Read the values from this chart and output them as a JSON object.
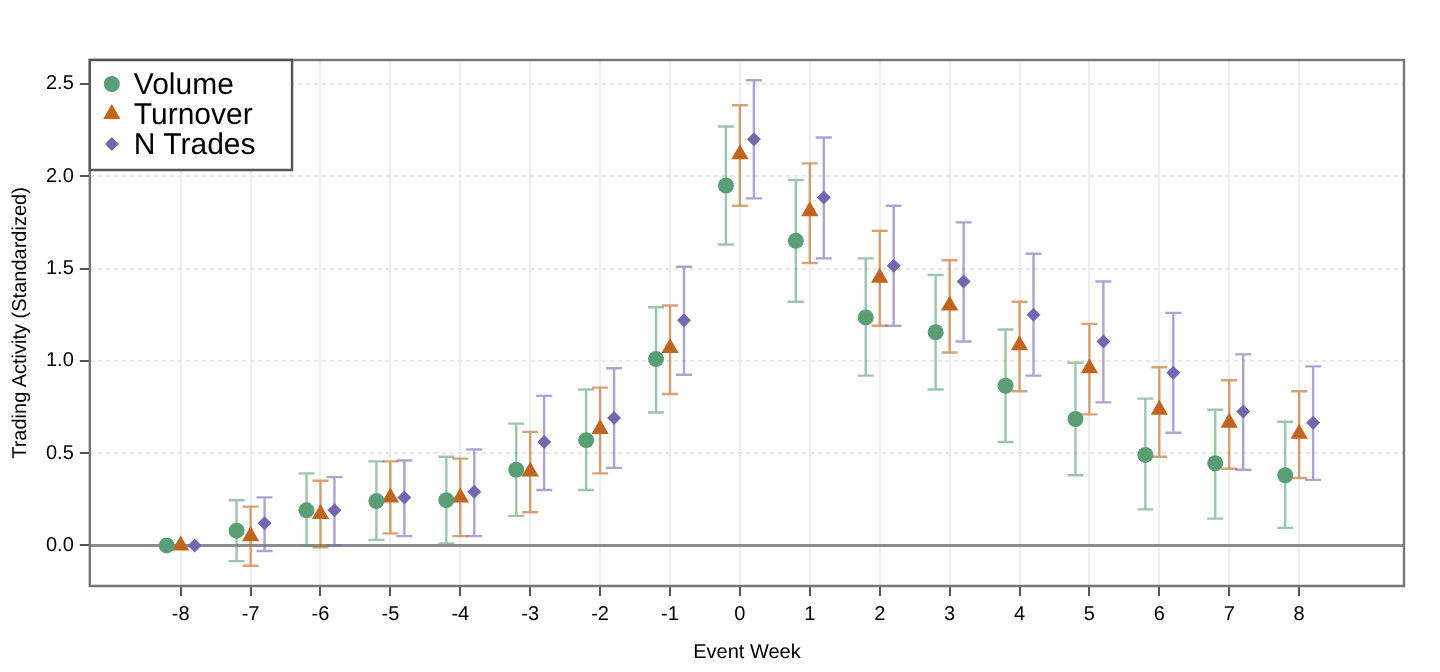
{
  "chart_data": {
    "type": "scatter",
    "xlabel": "Event Week",
    "ylabel": "Trading Activity (Standardized)",
    "xlim": [
      -9.3,
      9.5
    ],
    "xticks": [
      -8,
      -7,
      -6,
      -5,
      -4,
      -3,
      -2,
      -1,
      0,
      1,
      2,
      3,
      4,
      5,
      6,
      7,
      8
    ],
    "ylim": [
      -0.22,
      2.63
    ],
    "yticks": [
      {
        "value": 0,
        "label": "0.0"
      },
      {
        "value": 0.5,
        "label": "0.5"
      },
      {
        "value": 1,
        "label": "1.0"
      },
      {
        "value": 1.5,
        "label": "1.5"
      },
      {
        "value": 2,
        "label": "2.0"
      },
      {
        "value": 2.5,
        "label": "2.5"
      }
    ],
    "grid": true,
    "legend": "top left",
    "ref_lines": [
      {
        "axis": "y",
        "value": 0,
        "color": "#8c8c8c"
      }
    ],
    "series": [
      {
        "name": "Volume",
        "color": "#5a9e76",
        "marker": "circle",
        "x": [
          -8.2,
          -7.2,
          -6.2,
          -5.2,
          -4.2,
          -3.2,
          -2.2,
          -1.2,
          -0.2,
          0.8,
          1.8,
          2.8,
          3.8,
          4.8,
          5.8,
          6.8,
          7.8
        ],
        "values": [
          0,
          0.08,
          0.19,
          0.24,
          0.245,
          0.41,
          0.57,
          1.01,
          1.95,
          1.65,
          1.235,
          1.155,
          0.865,
          0.685,
          0.49,
          0.445,
          0.38
        ],
        "errors": [
          null,
          [
            -0.085,
            0.245
          ],
          [
            0,
            0.39
          ],
          [
            0.03,
            0.455
          ],
          [
            0.01,
            0.48
          ],
          [
            0.16,
            0.66
          ],
          [
            0.3,
            0.845
          ],
          [
            0.72,
            1.29
          ],
          [
            1.63,
            2.27
          ],
          [
            1.32,
            1.98
          ],
          [
            0.92,
            1.555
          ],
          [
            0.845,
            1.465
          ],
          [
            0.56,
            1.17
          ],
          [
            0.38,
            0.99
          ],
          [
            0.195,
            0.795
          ],
          [
            0.145,
            0.735
          ],
          [
            0.095,
            0.67
          ]
        ]
      },
      {
        "name": "Turnover",
        "color": "#c0651e",
        "marker": "triangle",
        "x": [
          -8,
          -7,
          -6,
          -5,
          -4,
          -3,
          -2,
          -1,
          0,
          1,
          2,
          3,
          4,
          5,
          6,
          7,
          8
        ],
        "values": [
          0,
          0.05,
          0.17,
          0.26,
          0.26,
          0.4,
          0.63,
          1.07,
          2.12,
          1.81,
          1.45,
          1.3,
          1.085,
          0.96,
          0.735,
          0.665,
          0.605
        ],
        "errors": [
          null,
          [
            -0.11,
            0.21
          ],
          [
            -0.01,
            0.35
          ],
          [
            0.065,
            0.455
          ],
          [
            0.05,
            0.47
          ],
          [
            0.18,
            0.615
          ],
          [
            0.39,
            0.855
          ],
          [
            0.82,
            1.3
          ],
          [
            1.84,
            2.385
          ],
          [
            1.53,
            2.07
          ],
          [
            1.19,
            1.705
          ],
          [
            1.045,
            1.545
          ],
          [
            0.835,
            1.32
          ],
          [
            0.71,
            1.2
          ],
          [
            0.48,
            0.965
          ],
          [
            0.415,
            0.895
          ],
          [
            0.365,
            0.835
          ]
        ]
      },
      {
        "name": "N Trades",
        "color": "#7467b0",
        "marker": "diamond",
        "x": [
          -7.8,
          -6.8,
          -5.8,
          -4.8,
          -3.8,
          -2.8,
          -1.8,
          -0.8,
          0.2,
          1.2,
          2.2,
          3.2,
          4.2,
          5.2,
          6.2,
          7.2,
          8.2
        ],
        "values": [
          0,
          0.12,
          0.19,
          0.26,
          0.29,
          0.56,
          0.69,
          1.22,
          2.2,
          1.885,
          1.515,
          1.43,
          1.25,
          1.105,
          0.935,
          0.725,
          0.665
        ],
        "errors": [
          null,
          [
            -0.03,
            0.26
          ],
          [
            0,
            0.37
          ],
          [
            0.05,
            0.46
          ],
          [
            0.05,
            0.52
          ],
          [
            0.3,
            0.81
          ],
          [
            0.42,
            0.96
          ],
          [
            0.925,
            1.51
          ],
          [
            1.88,
            2.52
          ],
          [
            1.555,
            2.21
          ],
          [
            1.19,
            1.84
          ],
          [
            1.105,
            1.75
          ],
          [
            0.92,
            1.58
          ],
          [
            0.775,
            1.43
          ],
          [
            0.61,
            1.26
          ],
          [
            0.41,
            1.035
          ],
          [
            0.355,
            0.97
          ]
        ]
      }
    ]
  }
}
